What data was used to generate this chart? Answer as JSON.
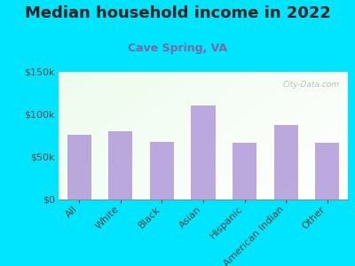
{
  "title": "Median household income in 2022",
  "subtitle": "Cave Spring, VA",
  "categories": [
    "All",
    "White",
    "Black",
    "Asian",
    "Hispanic",
    "American Indian",
    "Other"
  ],
  "values": [
    76000,
    80000,
    68000,
    110000,
    67000,
    87000,
    67000
  ],
  "bar_color": "#b39ddb",
  "background_outer": "#00e5ff",
  "title_color": "#212121",
  "subtitle_color": "#7b68a0",
  "tick_color": "#5d4037",
  "ylabel_ticks": [
    "$0",
    "$50k",
    "$100k",
    "$150k"
  ],
  "ylabel_values": [
    0,
    50000,
    100000,
    150000
  ],
  "ylim": [
    0,
    150000
  ],
  "watermark": "City-Data.com",
  "title_fontsize": 13,
  "subtitle_fontsize": 9,
  "tick_fontsize": 8
}
